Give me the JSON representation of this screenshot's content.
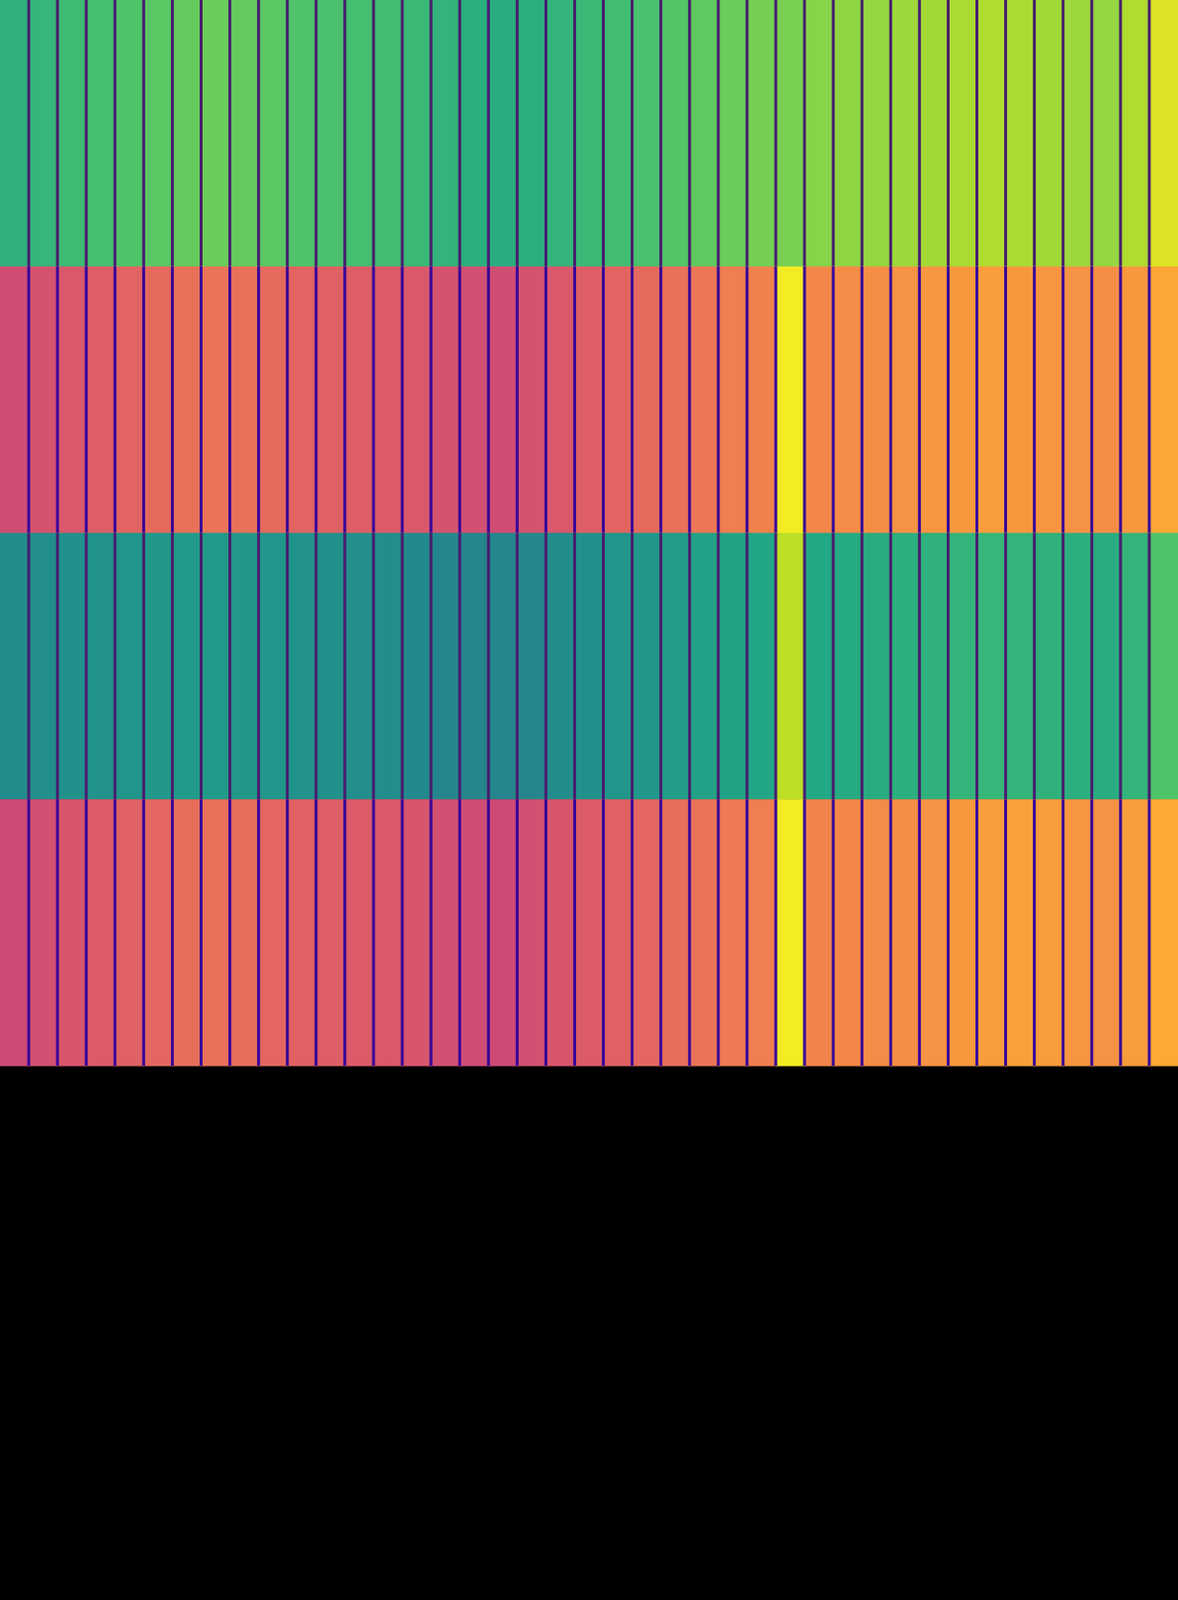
{
  "chart_data": {
    "type": "heatmap",
    "tick_labels": false,
    "zlim": [
      0,
      1
    ],
    "series": [
      {
        "color": "viridis",
        "values": [
          0.64,
          0.66,
          0.68,
          0.7,
          0.72,
          0.74,
          0.76,
          0.77,
          0.76,
          0.74,
          0.72,
          0.71,
          0.7,
          0.69,
          0.67,
          0.65,
          0.63,
          0.62,
          0.63,
          0.65,
          0.67,
          0.69,
          0.71,
          0.73,
          0.75,
          0.77,
          0.79,
          0.8,
          0.82,
          0.83,
          0.84,
          0.85,
          0.86,
          0.87,
          0.88,
          0.87,
          0.86,
          0.85,
          0.84,
          0.88,
          0.95
        ]
      },
      {
        "color": "plasma",
        "values": [
          0.52,
          0.54,
          0.56,
          0.58,
          0.6,
          0.62,
          0.64,
          0.65,
          0.64,
          0.62,
          0.6,
          0.59,
          0.58,
          0.57,
          0.56,
          0.54,
          0.53,
          0.52,
          0.54,
          0.56,
          0.58,
          0.6,
          0.62,
          0.64,
          0.66,
          0.68,
          0.69,
          0.97,
          0.71,
          0.72,
          0.73,
          0.74,
          0.75,
          0.76,
          0.77,
          0.76,
          0.75,
          0.74,
          0.73,
          0.76,
          0.8
        ]
      },
      {
        "color": "viridis",
        "values": [
          0.48,
          0.49,
          0.5,
          0.51,
          0.52,
          0.53,
          0.54,
          0.54,
          0.53,
          0.52,
          0.51,
          0.5,
          0.49,
          0.48,
          0.47,
          0.46,
          0.45,
          0.45,
          0.46,
          0.48,
          0.5,
          0.52,
          0.53,
          0.55,
          0.57,
          0.58,
          0.59,
          0.9,
          0.6,
          0.61,
          0.62,
          0.63,
          0.64,
          0.65,
          0.66,
          0.65,
          0.64,
          0.63,
          0.62,
          0.65,
          0.72
        ]
      },
      {
        "color": "plasma",
        "values": [
          0.51,
          0.53,
          0.55,
          0.57,
          0.59,
          0.61,
          0.63,
          0.64,
          0.63,
          0.61,
          0.59,
          0.58,
          0.57,
          0.56,
          0.55,
          0.53,
          0.52,
          0.51,
          0.53,
          0.55,
          0.57,
          0.59,
          0.61,
          0.63,
          0.65,
          0.67,
          0.68,
          0.97,
          0.7,
          0.71,
          0.72,
          0.73,
          0.74,
          0.76,
          0.77,
          0.78,
          0.77,
          0.75,
          0.74,
          0.77,
          0.81
        ]
      }
    ]
  }
}
